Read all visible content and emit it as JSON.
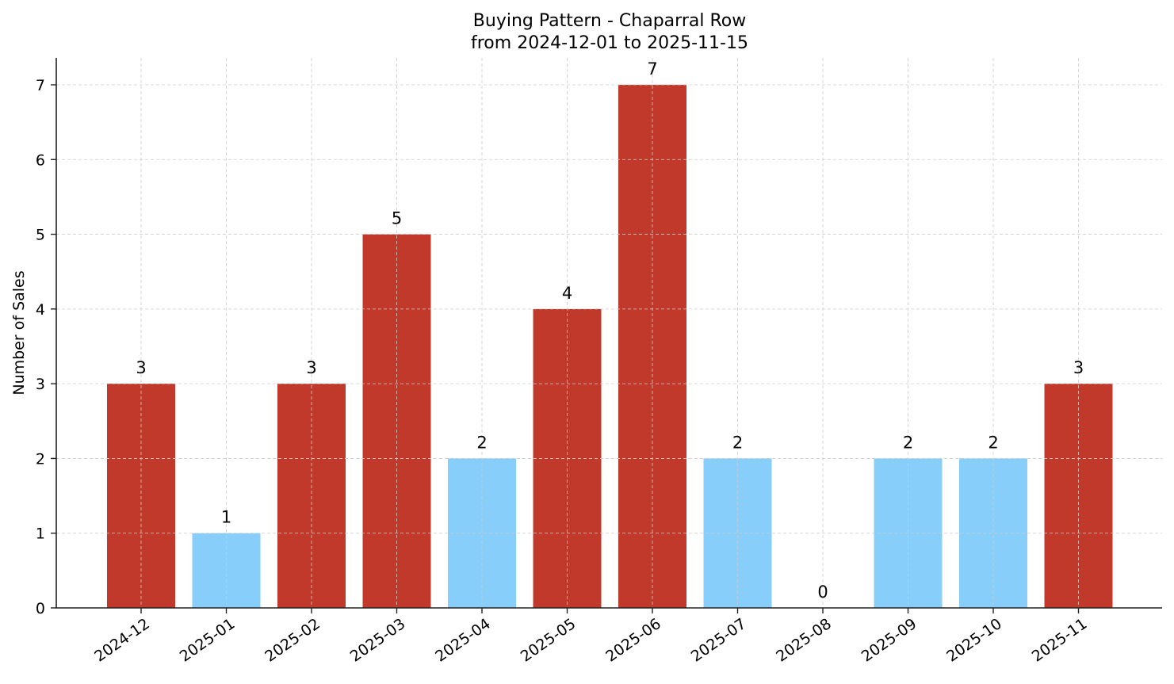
{
  "chart_data": {
    "type": "bar",
    "title": "Buying Pattern - Chaparral Row",
    "subtitle": "from 2024-12-01 to 2025-11-15",
    "xlabel": "",
    "ylabel": "Number of Sales",
    "categories": [
      "2024-12",
      "2025-01",
      "2025-02",
      "2025-03",
      "2025-04",
      "2025-05",
      "2025-06",
      "2025-07",
      "2025-08",
      "2025-09",
      "2025-10",
      "2025-11"
    ],
    "values": [
      3,
      1,
      3,
      5,
      2,
      4,
      7,
      2,
      0,
      2,
      2,
      3
    ],
    "bar_colors": [
      "#C0392B",
      "#87CEFA",
      "#C0392B",
      "#C0392B",
      "#87CEFA",
      "#C0392B",
      "#C0392B",
      "#87CEFA",
      "#87CEFA",
      "#87CEFA",
      "#87CEFA",
      "#C0392B"
    ],
    "color_rule": {
      "high": "#C0392B",
      "low": "#87CEFA",
      "threshold": 3
    },
    "ylim": [
      0,
      7.35
    ],
    "yticks": [
      0,
      1,
      2,
      3,
      4,
      5,
      6,
      7
    ],
    "grid": true,
    "legend": null,
    "data_labels": true
  }
}
